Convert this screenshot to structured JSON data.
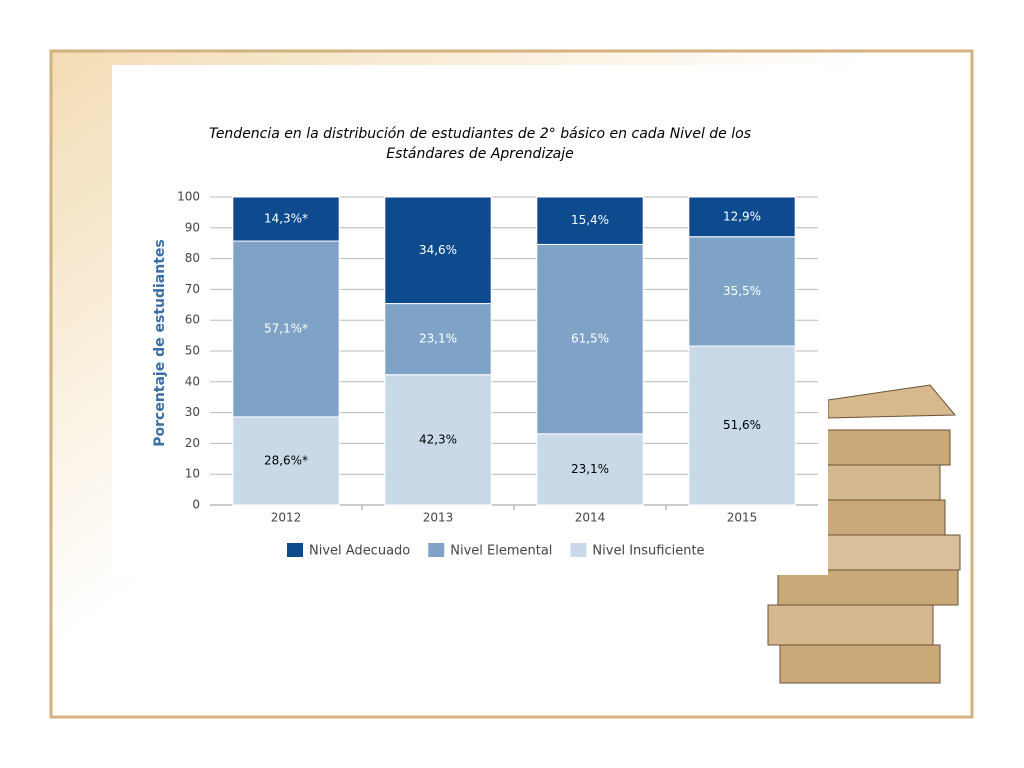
{
  "chart_data": {
    "type": "stacked_bar",
    "title": [
      "Tendencia en la distribución de estudiantes de 2° básico en cada Nivel de los",
      "Estándares de Aprendizaje"
    ],
    "y_label": "Porcentaje de estudiantes",
    "categories": [
      "2012",
      "2013",
      "2014",
      "2015"
    ],
    "series": [
      {
        "name": "Nivel Adecuado",
        "color": "#0d4b8e",
        "values": [
          14.3,
          34.6,
          15.4,
          12.9
        ],
        "value_labels": [
          "14,3%*",
          "34,6%",
          "15,4%",
          "12,9%"
        ]
      },
      {
        "name": "Nivel Elemental",
        "color": "#7fa3c6",
        "values": [
          57.1,
          23.1,
          61.5,
          35.5
        ],
        "value_labels": [
          "57,1%*",
          "23,1%",
          "61,5%",
          "35,5%"
        ]
      },
      {
        "name": "Nivel Insuficiente",
        "color": "#c9d9e8",
        "values": [
          28.6,
          42.3,
          23.1,
          51.6
        ],
        "value_labels": [
          "28,6%*",
          "42,3%",
          "23,1%",
          "51,6%"
        ]
      }
    ],
    "ylim": [
      0,
      100
    ],
    "yticks": [
      0,
      10,
      20,
      30,
      40,
      50,
      60,
      70,
      80,
      90,
      100
    ],
    "grid": true,
    "legend": "bottom"
  }
}
